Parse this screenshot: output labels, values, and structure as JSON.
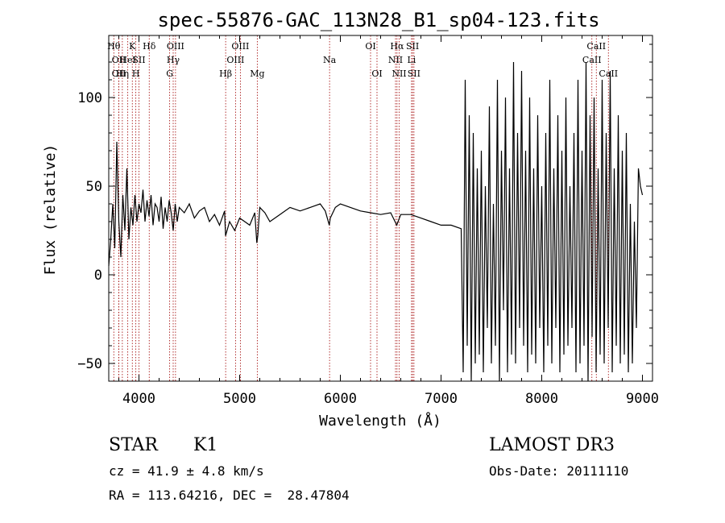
{
  "chart_data": {
    "type": "line",
    "title": "spec-55876-GAC_113N28_B1_sp04-123.fits",
    "xlabel": "Wavelength (Å)",
    "ylabel": "Flux (relative)",
    "xlim": [
      3700,
      9100
    ],
    "ylim": [
      -60,
      135
    ],
    "xticks": [
      4000,
      5000,
      6000,
      7000,
      8000,
      9000
    ],
    "yticks": [
      -50,
      0,
      50,
      100
    ],
    "xtick_labels": [
      "4000",
      "5000",
      "6000",
      "7000",
      "8000",
      "9000"
    ],
    "ytick_labels": [
      "−50",
      "0",
      "50",
      "100"
    ],
    "grid": false,
    "series": [
      {
        "x": [
          3700,
          3720,
          3740,
          3760,
          3780,
          3800,
          3820,
          3840,
          3860,
          3880,
          3900,
          3920,
          3940,
          3960,
          3980,
          4000,
          4020,
          4040,
          4060,
          4080,
          4100,
          4120,
          4140,
          4160,
          4180,
          4200,
          4220,
          4240,
          4260,
          4280,
          4300,
          4320,
          4340,
          4360,
          4380,
          4400,
          4450,
          4500,
          4550,
          4600,
          4650,
          4700,
          4750,
          4800,
          4850,
          4860,
          4900,
          4950,
          5000,
          5050,
          5100,
          5150,
          5170,
          5180,
          5200,
          5250,
          5300,
          5400,
          5500,
          5600,
          5700,
          5800,
          5850,
          5890,
          5900,
          5950,
          6000,
          6100,
          6200,
          6300,
          6400,
          6500,
          6560,
          6600,
          6700,
          6800,
          6900,
          7000,
          7100,
          7200,
          7220,
          7240,
          7260,
          7280,
          7300,
          7320,
          7340,
          7360,
          7380,
          7400,
          7420,
          7440,
          7460,
          7480,
          7500,
          7520,
          7540,
          7560,
          7580,
          7600,
          7620,
          7640,
          7660,
          7680,
          7700,
          7720,
          7740,
          7760,
          7780,
          7800,
          7820,
          7840,
          7860,
          7880,
          7900,
          7920,
          7940,
          7960,
          7980,
          8000,
          8020,
          8040,
          8060,
          8080,
          8100,
          8120,
          8140,
          8160,
          8180,
          8200,
          8220,
          8240,
          8260,
          8280,
          8300,
          8320,
          8340,
          8360,
          8380,
          8400,
          8420,
          8440,
          8460,
          8480,
          8500,
          8520,
          8540,
          8560,
          8580,
          8600,
          8620,
          8640,
          8660,
          8680,
          8700,
          8720,
          8740,
          8760,
          8780,
          8800,
          8820,
          8840,
          8860,
          8880,
          8900,
          8920,
          8940,
          8960,
          8980,
          9000
        ],
        "y": [
          5,
          20,
          40,
          15,
          75,
          30,
          10,
          45,
          25,
          60,
          20,
          38,
          28,
          45,
          30,
          40,
          35,
          48,
          30,
          42,
          33,
          45,
          28,
          40,
          38,
          30,
          44,
          26,
          38,
          30,
          42,
          35,
          25,
          40,
          30,
          38,
          35,
          40,
          32,
          36,
          38,
          30,
          34,
          28,
          36,
          22,
          30,
          25,
          32,
          30,
          28,
          35,
          18,
          22,
          38,
          35,
          30,
          34,
          38,
          36,
          38,
          40,
          36,
          28,
          32,
          38,
          40,
          38,
          36,
          35,
          34,
          35,
          28,
          34,
          34,
          32,
          30,
          28,
          28,
          26,
          -55,
          110,
          -40,
          90,
          -60,
          80,
          -50,
          60,
          -45,
          70,
          -55,
          50,
          -30,
          95,
          -50,
          40,
          -40,
          110,
          -60,
          70,
          -20,
          100,
          -55,
          60,
          -45,
          120,
          -50,
          80,
          -30,
          115,
          -40,
          70,
          -55,
          100,
          -45,
          60,
          -50,
          90,
          -30,
          50,
          -55,
          80,
          -40,
          110,
          -50,
          60,
          -30,
          90,
          -55,
          70,
          -45,
          100,
          -40,
          50,
          -30,
          80,
          -55,
          110,
          -50,
          70,
          -40,
          120,
          -60,
          90,
          -35,
          100,
          -55,
          60,
          -45,
          110,
          -50,
          80,
          -30,
          115,
          -55,
          60,
          -40,
          90,
          -50,
          70,
          -45,
          80,
          -55,
          40,
          -50,
          30,
          -30,
          60,
          50,
          45
        ]
      }
    ],
    "lines": [
      {
        "x": 3750,
        "row": 1,
        "label": "Hθ"
      },
      {
        "x": 3800,
        "row": 2,
        "label": "OII"
      },
      {
        "x": 3800,
        "row": 3,
        "label": "OII"
      },
      {
        "x": 3835,
        "row": 3,
        "label": "Hη"
      },
      {
        "x": 3889,
        "row": 2,
        "label": "HeI"
      },
      {
        "x": 3934,
        "row": 1,
        "label": "K"
      },
      {
        "x": 3969,
        "row": 3,
        "label": "H"
      },
      {
        "x": 4000,
        "row": 2,
        "label": "SII"
      },
      {
        "x": 4102,
        "row": 1,
        "label": "Hδ"
      },
      {
        "x": 4305,
        "row": 3,
        "label": "G"
      },
      {
        "x": 4340,
        "row": 2,
        "label": "Hγ"
      },
      {
        "x": 4363,
        "row": 1,
        "label": "OIII"
      },
      {
        "x": 4861,
        "row": 3,
        "label": "Hβ"
      },
      {
        "x": 4959,
        "row": 2,
        "label": "OIII"
      },
      {
        "x": 5007,
        "row": 1,
        "label": "OIII"
      },
      {
        "x": 5175,
        "row": 3,
        "label": "Mg"
      },
      {
        "x": 5893,
        "row": 2,
        "label": "Na"
      },
      {
        "x": 6300,
        "row": 1,
        "label": "OI"
      },
      {
        "x": 6364,
        "row": 3,
        "label": "OI"
      },
      {
        "x": 6548,
        "row": 2,
        "label": "NII"
      },
      {
        "x": 6563,
        "row": 1,
        "label": "Hα"
      },
      {
        "x": 6584,
        "row": 3,
        "label": "NII"
      },
      {
        "x": 6707,
        "row": 2,
        "label": "Li"
      },
      {
        "x": 6717,
        "row": 1,
        "label": "SII"
      },
      {
        "x": 6731,
        "row": 3,
        "label": "SII"
      },
      {
        "x": 8498,
        "row": 2,
        "label": "CaII"
      },
      {
        "x": 8542,
        "row": 1,
        "label": "CaII"
      },
      {
        "x": 8662,
        "row": 3,
        "label": "CaII"
      }
    ],
    "colors": {
      "spectrum": "#000000",
      "lines": "#a00000"
    }
  },
  "info": {
    "object_class": "STAR",
    "subclass": "K1",
    "survey": "LAMOST DR3",
    "cz": "cz = 41.9 ± 4.8 km/s",
    "obs_date": "Obs-Date: 20111110",
    "coords": "RA = 113.64216, DEC =  28.47804"
  }
}
